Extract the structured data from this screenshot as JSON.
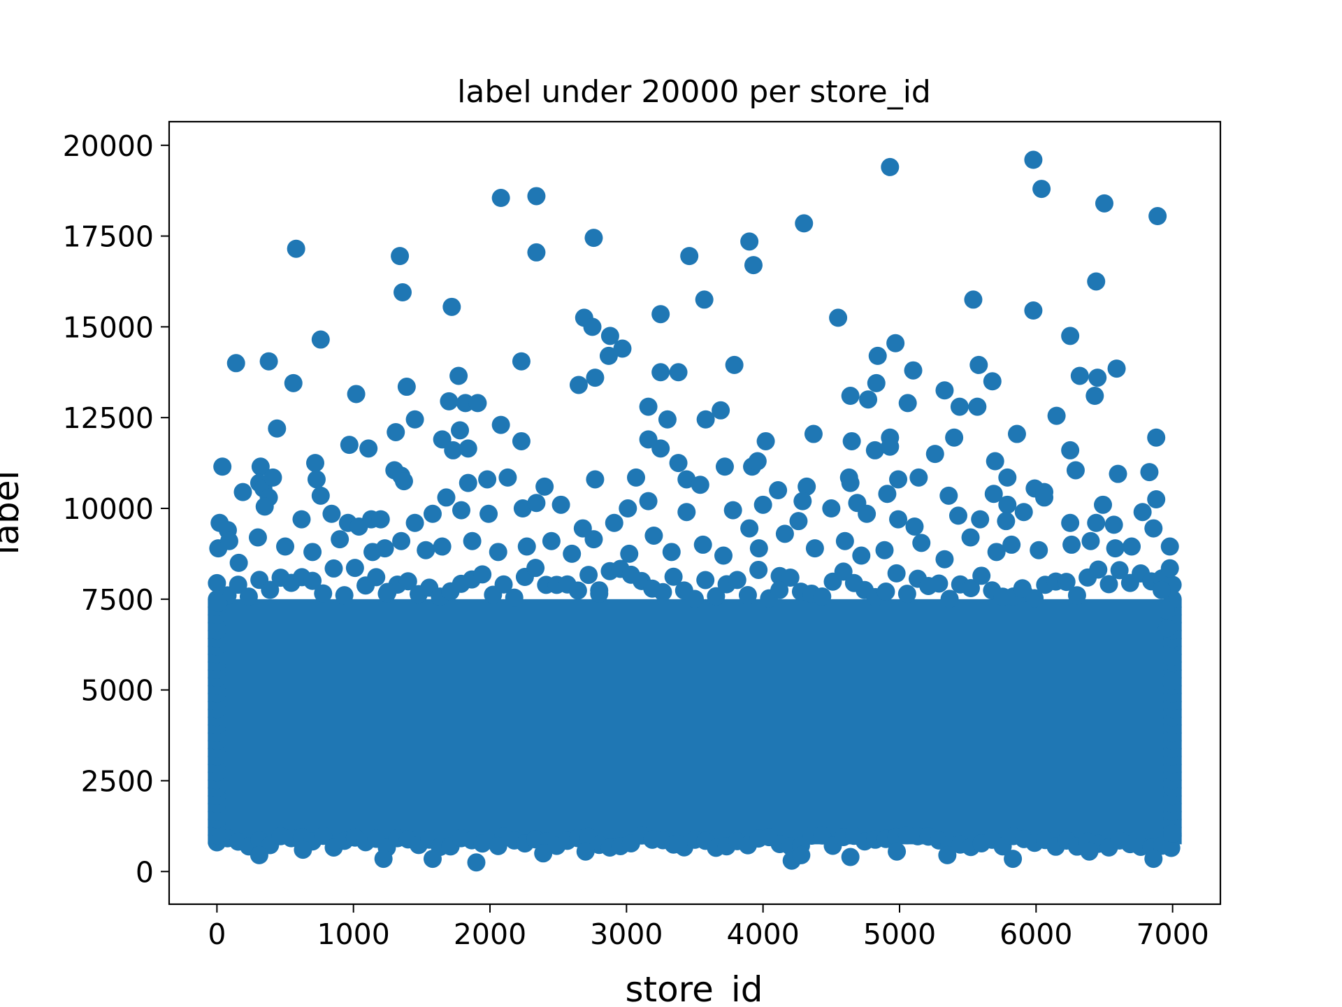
{
  "chart_data": {
    "type": "scatter",
    "title": "label under 20000 per store_id",
    "xlabel": "store_id",
    "ylabel": "label",
    "xlim": [
      -350,
      7350
    ],
    "ylim": [
      -900,
      20650
    ],
    "xticks": [
      0,
      1000,
      2000,
      3000,
      4000,
      5000,
      6000,
      7000
    ],
    "xtick_labels": [
      "0",
      "1000",
      "2000",
      "3000",
      "4000",
      "5000",
      "6000",
      "7000"
    ],
    "yticks": [
      0,
      2500,
      5000,
      7500,
      10000,
      12500,
      15000,
      17500,
      20000
    ],
    "ytick_labels": [
      "0",
      "2500",
      "5000",
      "7500",
      "10000",
      "12500",
      "15000",
      "17500",
      "20000"
    ],
    "grid": false,
    "marker_color": "#1f77b4",
    "dense_band": {
      "x_range": [
        0,
        7000
      ],
      "y_range": [
        1000,
        7500
      ]
    },
    "points": [
      [
        580,
        17150
      ],
      [
        1340,
        16950
      ],
      [
        1360,
        15950
      ],
      [
        2080,
        18550
      ],
      [
        2340,
        18600
      ],
      [
        2340,
        17050
      ],
      [
        2760,
        17450
      ],
      [
        3900,
        17350
      ],
      [
        3930,
        16700
      ],
      [
        4300,
        17850
      ],
      [
        4930,
        19400
      ],
      [
        5980,
        19600
      ],
      [
        6040,
        18800
      ],
      [
        6500,
        18400
      ],
      [
        6890,
        18050
      ],
      [
        6440,
        16250
      ],
      [
        3460,
        16950
      ],
      [
        3570,
        15750
      ],
      [
        5540,
        15750
      ],
      [
        5980,
        15450
      ],
      [
        1720,
        15550
      ],
      [
        2690,
        15250
      ],
      [
        2750,
        15000
      ],
      [
        2880,
        14750
      ],
      [
        2970,
        14400
      ],
      [
        3250,
        15350
      ],
      [
        4550,
        15250
      ],
      [
        4970,
        14550
      ],
      [
        6250,
        14750
      ],
      [
        140,
        14000
      ],
      [
        380,
        14050
      ],
      [
        760,
        14650
      ],
      [
        560,
        13450
      ],
      [
        1020,
        13150
      ],
      [
        1390,
        13350
      ],
      [
        1770,
        13650
      ],
      [
        2230,
        14050
      ],
      [
        2870,
        14200
      ],
      [
        2770,
        13600
      ],
      [
        2650,
        13400
      ],
      [
        3250,
        13750
      ],
      [
        3380,
        13750
      ],
      [
        3790,
        13950
      ],
      [
        4840,
        14200
      ],
      [
        5100,
        13800
      ],
      [
        5580,
        13950
      ],
      [
        5680,
        13500
      ],
      [
        6320,
        13650
      ],
      [
        6450,
        13600
      ],
      [
        6590,
        13850
      ],
      [
        6430,
        13100
      ],
      [
        4830,
        13450
      ],
      [
        4640,
        13100
      ],
      [
        4770,
        13000
      ],
      [
        5060,
        12900
      ],
      [
        5330,
        13250
      ],
      [
        5440,
        12800
      ],
      [
        5570,
        12800
      ],
      [
        1700,
        12950
      ],
      [
        1820,
        12900
      ],
      [
        1910,
        12900
      ],
      [
        3160,
        12800
      ],
      [
        3300,
        12450
      ],
      [
        3690,
        12700
      ],
      [
        3580,
        12450
      ],
      [
        6150,
        12550
      ],
      [
        440,
        12200
      ],
      [
        1450,
        12450
      ],
      [
        1310,
        12100
      ],
      [
        1780,
        12150
      ],
      [
        2080,
        12300
      ],
      [
        2230,
        11850
      ],
      [
        3160,
        11900
      ],
      [
        3250,
        11650
      ],
      [
        4020,
        11850
      ],
      [
        4370,
        12050
      ],
      [
        4650,
        11850
      ],
      [
        4820,
        11600
      ],
      [
        4930,
        11950
      ],
      [
        4930,
        11700
      ],
      [
        5260,
        11500
      ],
      [
        5400,
        11950
      ],
      [
        5860,
        12050
      ],
      [
        6250,
        11600
      ],
      [
        6880,
        11950
      ],
      [
        40,
        11150
      ],
      [
        320,
        11150
      ],
      [
        720,
        11250
      ],
      [
        970,
        11750
      ],
      [
        1110,
        11650
      ],
      [
        1650,
        11900
      ],
      [
        1730,
        11600
      ],
      [
        1840,
        11650
      ],
      [
        1300,
        11050
      ],
      [
        1350,
        10900
      ],
      [
        1370,
        10750
      ],
      [
        3380,
        11250
      ],
      [
        3440,
        10800
      ],
      [
        3540,
        10650
      ],
      [
        3720,
        11150
      ],
      [
        3920,
        11150
      ],
      [
        3960,
        11300
      ],
      [
        4110,
        10500
      ],
      [
        4320,
        10600
      ],
      [
        4630,
        10850
      ],
      [
        4640,
        10700
      ],
      [
        4990,
        10800
      ],
      [
        5140,
        10850
      ],
      [
        5700,
        11300
      ],
      [
        5790,
        10850
      ],
      [
        5990,
        10550
      ],
      [
        6060,
        10450
      ],
      [
        6290,
        11050
      ],
      [
        6600,
        10950
      ],
      [
        6830,
        11000
      ],
      [
        190,
        10450
      ],
      [
        310,
        10700
      ],
      [
        340,
        10550
      ],
      [
        410,
        10850
      ],
      [
        380,
        10300
      ],
      [
        730,
        10800
      ],
      [
        760,
        10350
      ],
      [
        1980,
        10800
      ],
      [
        2130,
        10850
      ],
      [
        2400,
        10600
      ],
      [
        1680,
        10300
      ],
      [
        1840,
        10700
      ],
      [
        2770,
        10800
      ],
      [
        3070,
        10850
      ],
      [
        3160,
        10200
      ],
      [
        4000,
        10100
      ],
      [
        4290,
        10200
      ],
      [
        4690,
        10150
      ],
      [
        4910,
        10400
      ],
      [
        5360,
        10350
      ],
      [
        5690,
        10400
      ],
      [
        5790,
        10100
      ],
      [
        6060,
        10300
      ],
      [
        6490,
        10100
      ],
      [
        6880,
        10250
      ],
      [
        20,
        9600
      ],
      [
        80,
        9400
      ],
      [
        350,
        10050
      ],
      [
        620,
        9700
      ],
      [
        840,
        9850
      ],
      [
        960,
        9600
      ],
      [
        1040,
        9500
      ],
      [
        1130,
        9700
      ],
      [
        1200,
        9700
      ],
      [
        1450,
        9600
      ],
      [
        1580,
        9850
      ],
      [
        1790,
        9950
      ],
      [
        1990,
        9850
      ],
      [
        2240,
        10000
      ],
      [
        2340,
        10150
      ],
      [
        2520,
        10100
      ],
      [
        2680,
        9450
      ],
      [
        2910,
        9600
      ],
      [
        3010,
        10000
      ],
      [
        3440,
        9900
      ],
      [
        3780,
        9950
      ],
      [
        3900,
        9450
      ],
      [
        4260,
        9650
      ],
      [
        4500,
        10000
      ],
      [
        4760,
        9850
      ],
      [
        4990,
        9700
      ],
      [
        5110,
        9500
      ],
      [
        5430,
        9800
      ],
      [
        5590,
        9700
      ],
      [
        5780,
        9650
      ],
      [
        5910,
        9900
      ],
      [
        6250,
        9600
      ],
      [
        6440,
        9600
      ],
      [
        6570,
        9550
      ],
      [
        6780,
        9900
      ],
      [
        6860,
        9450
      ],
      [
        10,
        8900
      ],
      [
        90,
        9100
      ],
      [
        160,
        8500
      ],
      [
        300,
        9200
      ],
      [
        500,
        8950
      ],
      [
        700,
        8800
      ],
      [
        900,
        9150
      ],
      [
        1140,
        8800
      ],
      [
        1230,
        8900
      ],
      [
        1350,
        9100
      ],
      [
        1530,
        8850
      ],
      [
        1650,
        8950
      ],
      [
        1870,
        9100
      ],
      [
        2060,
        8800
      ],
      [
        2270,
        8950
      ],
      [
        2450,
        9100
      ],
      [
        2600,
        8750
      ],
      [
        2760,
        9150
      ],
      [
        3020,
        8750
      ],
      [
        3200,
        9250
      ],
      [
        3330,
        8800
      ],
      [
        3560,
        9000
      ],
      [
        3710,
        8700
      ],
      [
        3970,
        8900
      ],
      [
        4160,
        9300
      ],
      [
        4380,
        8900
      ],
      [
        4600,
        9100
      ],
      [
        4720,
        8700
      ],
      [
        4890,
        8850
      ],
      [
        5160,
        9050
      ],
      [
        5330,
        8600
      ],
      [
        5520,
        9200
      ],
      [
        5710,
        8800
      ],
      [
        5820,
        9000
      ],
      [
        6020,
        8850
      ],
      [
        6260,
        9000
      ],
      [
        6400,
        9100
      ],
      [
        6580,
        8900
      ],
      [
        6700,
        8950
      ],
      [
        6980,
        8950
      ],
      [
        6980,
        8350
      ],
      [
        6920,
        7750
      ],
      [
        6950,
        7200
      ],
      [
        6960,
        6700
      ],
      [
        6990,
        5900
      ],
      [
        6990,
        5250
      ],
      [
        4120,
        7750
      ],
      [
        2800,
        7650
      ],
      [
        5900,
        7800
      ],
      [
        1250,
        7700
      ],
      [
        10,
        7400
      ],
      [
        4210,
        300
      ],
      [
        4280,
        450
      ],
      [
        1220,
        350
      ],
      [
        1580,
        350
      ],
      [
        1900,
        250
      ],
      [
        310,
        450
      ],
      [
        630,
        600
      ],
      [
        2060,
        700
      ],
      [
        2390,
        500
      ],
      [
        2700,
        550
      ],
      [
        3380,
        750
      ],
      [
        4640,
        400
      ],
      [
        4980,
        550
      ],
      [
        5350,
        450
      ],
      [
        5830,
        350
      ],
      [
        6390,
        550
      ],
      [
        6860,
        350
      ],
      [
        6990,
        650
      ],
      [
        7000,
        1050
      ]
    ]
  }
}
